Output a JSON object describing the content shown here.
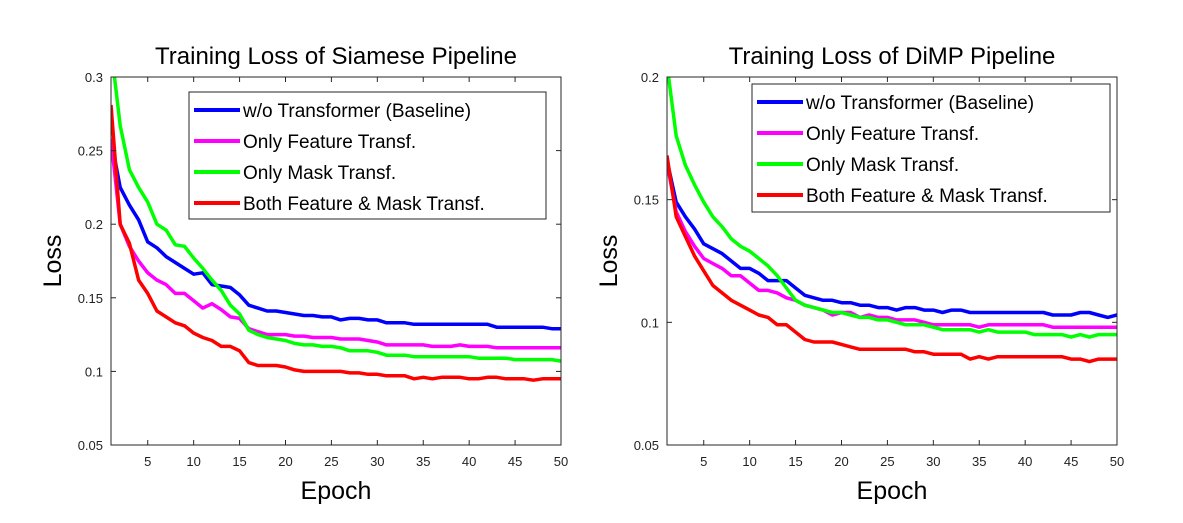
{
  "chart_data": [
    {
      "type": "line",
      "title": "Training Loss of Siamese Pipeline",
      "xlabel": "Epoch",
      "ylabel": "Loss",
      "xlim": [
        1,
        50
      ],
      "ylim": [
        0.05,
        0.3
      ],
      "xticks": [
        "5",
        "10",
        "15",
        "20",
        "25",
        "30",
        "35",
        "40",
        "45",
        "50"
      ],
      "yticks": [
        "0.05",
        "0.1",
        "0.15",
        "0.2",
        "0.25",
        "0.3"
      ],
      "grid": false,
      "legend_position": "top-right",
      "x": [
        1,
        2,
        3,
        4,
        5,
        6,
        7,
        8,
        9,
        10,
        11,
        12,
        13,
        14,
        15,
        16,
        17,
        18,
        19,
        20,
        21,
        22,
        23,
        24,
        25,
        26,
        27,
        28,
        29,
        30,
        31,
        32,
        33,
        34,
        35,
        36,
        37,
        38,
        39,
        40,
        41,
        42,
        43,
        44,
        45,
        46,
        47,
        48,
        49,
        50
      ],
      "series": [
        {
          "name": "w/o Transformer (Baseline)",
          "color": "#0000ff",
          "values": [
            0.258,
            0.225,
            0.213,
            0.203,
            0.188,
            0.184,
            0.178,
            0.174,
            0.17,
            0.166,
            0.167,
            0.159,
            0.158,
            0.157,
            0.152,
            0.145,
            0.143,
            0.141,
            0.141,
            0.14,
            0.139,
            0.138,
            0.138,
            0.137,
            0.137,
            0.135,
            0.136,
            0.136,
            0.135,
            0.135,
            0.133,
            0.133,
            0.133,
            0.132,
            0.132,
            0.132,
            0.132,
            0.132,
            0.132,
            0.132,
            0.132,
            0.132,
            0.13,
            0.13,
            0.13,
            0.13,
            0.13,
            0.13,
            0.129,
            0.129
          ]
        },
        {
          "name": "Only Feature Transf.",
          "color": "#ff00ff",
          "values": [
            0.258,
            0.2,
            0.185,
            0.175,
            0.167,
            0.162,
            0.159,
            0.153,
            0.153,
            0.148,
            0.143,
            0.146,
            0.142,
            0.137,
            0.136,
            0.129,
            0.127,
            0.125,
            0.125,
            0.125,
            0.124,
            0.124,
            0.123,
            0.123,
            0.123,
            0.122,
            0.122,
            0.122,
            0.121,
            0.12,
            0.118,
            0.118,
            0.118,
            0.118,
            0.118,
            0.117,
            0.117,
            0.117,
            0.118,
            0.117,
            0.117,
            0.117,
            0.116,
            0.116,
            0.116,
            0.116,
            0.116,
            0.116,
            0.116,
            0.116
          ]
        },
        {
          "name": "Only Mask Transf.",
          "color": "#00ff00",
          "values": [
            0.32,
            0.267,
            0.237,
            0.225,
            0.215,
            0.2,
            0.196,
            0.186,
            0.185,
            0.177,
            0.17,
            0.162,
            0.155,
            0.145,
            0.139,
            0.128,
            0.125,
            0.123,
            0.122,
            0.121,
            0.119,
            0.118,
            0.118,
            0.117,
            0.117,
            0.116,
            0.114,
            0.114,
            0.114,
            0.113,
            0.111,
            0.111,
            0.111,
            0.11,
            0.11,
            0.11,
            0.11,
            0.11,
            0.11,
            0.11,
            0.109,
            0.109,
            0.109,
            0.109,
            0.108,
            0.108,
            0.108,
            0.108,
            0.108,
            0.107
          ]
        },
        {
          "name": "Both Feature & Mask Transf.",
          "color": "#ff0000",
          "values": [
            0.281,
            0.2,
            0.187,
            0.162,
            0.153,
            0.141,
            0.137,
            0.133,
            0.131,
            0.126,
            0.123,
            0.121,
            0.117,
            0.117,
            0.114,
            0.106,
            0.104,
            0.104,
            0.104,
            0.103,
            0.101,
            0.1,
            0.1,
            0.1,
            0.1,
            0.1,
            0.099,
            0.099,
            0.098,
            0.098,
            0.097,
            0.097,
            0.097,
            0.095,
            0.096,
            0.095,
            0.096,
            0.096,
            0.096,
            0.095,
            0.095,
            0.096,
            0.096,
            0.095,
            0.095,
            0.095,
            0.094,
            0.095,
            0.095,
            0.095
          ]
        }
      ]
    },
    {
      "type": "line",
      "title": "Training Loss of DiMP Pipeline",
      "xlabel": "Epoch",
      "ylabel": "Loss",
      "xlim": [
        1,
        50
      ],
      "ylim": [
        0.05,
        0.2
      ],
      "xticks": [
        "5",
        "10",
        "15",
        "20",
        "25",
        "30",
        "35",
        "40",
        "45",
        "50"
      ],
      "yticks": [
        "0.05",
        "0.1",
        "0.15",
        "0.2"
      ],
      "grid": false,
      "legend_position": "top-right",
      "x": [
        1,
        2,
        3,
        4,
        5,
        6,
        7,
        8,
        9,
        10,
        11,
        12,
        13,
        14,
        15,
        16,
        17,
        18,
        19,
        20,
        21,
        22,
        23,
        24,
        25,
        26,
        27,
        28,
        29,
        30,
        31,
        32,
        33,
        34,
        35,
        36,
        37,
        38,
        39,
        40,
        41,
        42,
        43,
        44,
        45,
        46,
        47,
        48,
        49,
        50
      ],
      "series": [
        {
          "name": "w/o Transformer (Baseline)",
          "color": "#0000ff",
          "values": [
            0.166,
            0.149,
            0.143,
            0.138,
            0.132,
            0.13,
            0.128,
            0.125,
            0.122,
            0.122,
            0.12,
            0.117,
            0.117,
            0.117,
            0.114,
            0.111,
            0.11,
            0.109,
            0.109,
            0.108,
            0.108,
            0.107,
            0.107,
            0.106,
            0.106,
            0.105,
            0.106,
            0.106,
            0.105,
            0.105,
            0.104,
            0.105,
            0.105,
            0.104,
            0.104,
            0.104,
            0.104,
            0.104,
            0.104,
            0.104,
            0.104,
            0.104,
            0.103,
            0.103,
            0.103,
            0.104,
            0.104,
            0.103,
            0.102,
            0.103
          ]
        },
        {
          "name": "Only Feature Transf.",
          "color": "#ff00ff",
          "values": [
            0.165,
            0.145,
            0.137,
            0.131,
            0.126,
            0.124,
            0.122,
            0.119,
            0.119,
            0.116,
            0.113,
            0.113,
            0.112,
            0.11,
            0.109,
            0.107,
            0.106,
            0.105,
            0.103,
            0.104,
            0.104,
            0.102,
            0.103,
            0.102,
            0.102,
            0.101,
            0.101,
            0.101,
            0.1,
            0.099,
            0.099,
            0.099,
            0.099,
            0.099,
            0.098,
            0.099,
            0.099,
            0.099,
            0.099,
            0.099,
            0.099,
            0.099,
            0.098,
            0.098,
            0.098,
            0.098,
            0.098,
            0.098,
            0.098,
            0.098
          ]
        },
        {
          "name": "Only Mask Transf.",
          "color": "#00ff00",
          "values": [
            0.205,
            0.176,
            0.164,
            0.156,
            0.149,
            0.143,
            0.139,
            0.134,
            0.131,
            0.129,
            0.126,
            0.123,
            0.119,
            0.114,
            0.109,
            0.107,
            0.106,
            0.105,
            0.104,
            0.104,
            0.103,
            0.102,
            0.102,
            0.101,
            0.101,
            0.1,
            0.099,
            0.099,
            0.099,
            0.098,
            0.097,
            0.097,
            0.097,
            0.097,
            0.096,
            0.097,
            0.096,
            0.096,
            0.096,
            0.096,
            0.095,
            0.095,
            0.095,
            0.095,
            0.094,
            0.095,
            0.094,
            0.095,
            0.095,
            0.095
          ]
        },
        {
          "name": "Both Feature & Mask Transf.",
          "color": "#ff0000",
          "values": [
            0.168,
            0.143,
            0.135,
            0.127,
            0.121,
            0.115,
            0.112,
            0.109,
            0.107,
            0.105,
            0.103,
            0.102,
            0.099,
            0.099,
            0.096,
            0.093,
            0.092,
            0.092,
            0.092,
            0.091,
            0.09,
            0.089,
            0.089,
            0.089,
            0.089,
            0.089,
            0.089,
            0.088,
            0.088,
            0.087,
            0.087,
            0.087,
            0.087,
            0.085,
            0.086,
            0.085,
            0.086,
            0.086,
            0.086,
            0.086,
            0.086,
            0.086,
            0.086,
            0.086,
            0.085,
            0.085,
            0.084,
            0.085,
            0.085,
            0.085
          ]
        }
      ]
    }
  ]
}
